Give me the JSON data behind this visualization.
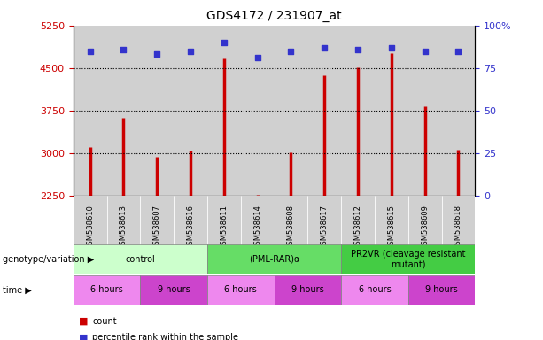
{
  "title": "GDS4172 / 231907_at",
  "samples": [
    "GSM538610",
    "GSM538613",
    "GSM538607",
    "GSM538616",
    "GSM538611",
    "GSM538614",
    "GSM538608",
    "GSM538617",
    "GSM538612",
    "GSM538615",
    "GSM538609",
    "GSM538618"
  ],
  "counts": [
    3100,
    3620,
    2930,
    3040,
    4670,
    2270,
    3020,
    4370,
    4520,
    4760,
    3820,
    3060
  ],
  "percentile_ranks": [
    85,
    86,
    83,
    85,
    90,
    81,
    85,
    87,
    86,
    87,
    85,
    85
  ],
  "ylim_left": [
    2250,
    5250
  ],
  "ylim_right": [
    0,
    100
  ],
  "yticks_left": [
    2250,
    3000,
    3750,
    4500,
    5250
  ],
  "yticks_right": [
    0,
    25,
    50,
    75,
    100
  ],
  "bar_color": "#cc0000",
  "dot_color": "#3333cc",
  "bg_color": "#ffffff",
  "col_bg_color": "#d0d0d0",
  "genotype_groups": [
    {
      "label": "control",
      "start": 0,
      "end": 4,
      "color": "#ccffcc"
    },
    {
      "label": "(PML-RAR)α",
      "start": 4,
      "end": 8,
      "color": "#66dd66"
    },
    {
      "label": "PR2VR (cleavage resistant\nmutant)",
      "start": 8,
      "end": 12,
      "color": "#44cc44"
    }
  ],
  "time_groups": [
    {
      "label": "6 hours",
      "start": 0,
      "end": 2,
      "color": "#ee88ee"
    },
    {
      "label": "9 hours",
      "start": 2,
      "end": 4,
      "color": "#cc44cc"
    },
    {
      "label": "6 hours",
      "start": 4,
      "end": 6,
      "color": "#ee88ee"
    },
    {
      "label": "9 hours",
      "start": 6,
      "end": 8,
      "color": "#cc44cc"
    },
    {
      "label": "6 hours",
      "start": 8,
      "end": 10,
      "color": "#ee88ee"
    },
    {
      "label": "9 hours",
      "start": 10,
      "end": 12,
      "color": "#cc44cc"
    }
  ],
  "tick_label_color_left": "#cc0000",
  "tick_label_color_right": "#3333cc",
  "grid_yticks": [
    3000,
    3750,
    4500
  ]
}
